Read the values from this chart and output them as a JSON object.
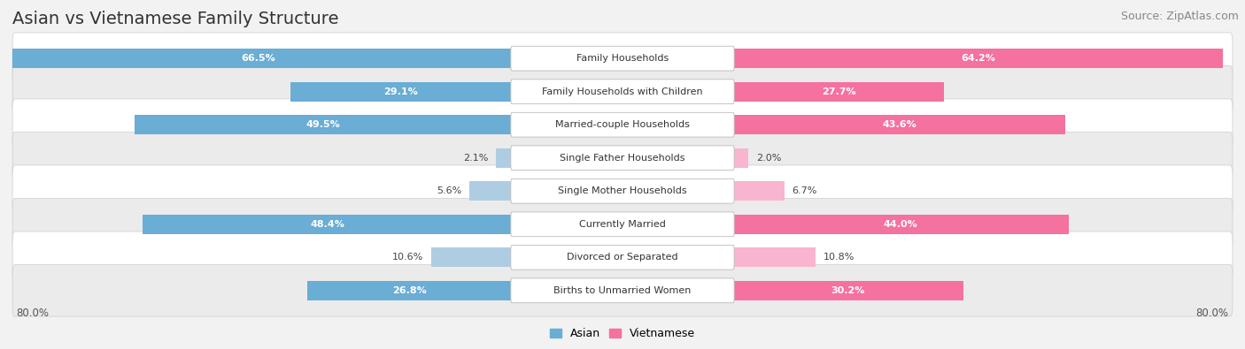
{
  "title": "Asian vs Vietnamese Family Structure",
  "source": "Source: ZipAtlas.com",
  "categories": [
    "Family Households",
    "Family Households with Children",
    "Married-couple Households",
    "Single Father Households",
    "Single Mother Households",
    "Currently Married",
    "Divorced or Separated",
    "Births to Unmarried Women"
  ],
  "asian_values": [
    66.5,
    29.1,
    49.5,
    2.1,
    5.6,
    48.4,
    10.6,
    26.8
  ],
  "vietnamese_values": [
    64.2,
    27.7,
    43.6,
    2.0,
    6.7,
    44.0,
    10.8,
    30.2
  ],
  "asian_color": "#6aadd5",
  "vietnamese_color": "#f471a0",
  "asian_color_light": "#aecde2",
  "vietnamese_color_light": "#f9b4cf",
  "axis_max": 80.0,
  "axis_label_left": "80.0%",
  "axis_label_right": "80.0%",
  "bg_color": "#f2f2f2",
  "row_bg_even": "#ffffff",
  "row_bg_odd": "#ebebeb",
  "title_fontsize": 14,
  "source_fontsize": 9,
  "label_fontsize": 8,
  "value_fontsize": 8
}
